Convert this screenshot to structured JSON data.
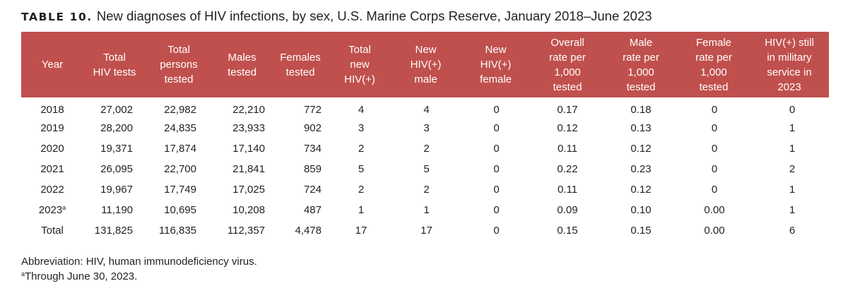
{
  "title": {
    "label": "TABLE 10.",
    "text": "New diagnoses of HIV infections, by sex, U.S. Marine Corps Reserve, January 2018–June 2023"
  },
  "columns": [
    [
      "Year"
    ],
    [
      "Total",
      "HIV tests"
    ],
    [
      "Total",
      "persons",
      "tested"
    ],
    [
      "Males",
      "tested"
    ],
    [
      "Females",
      "tested"
    ],
    [
      "Total",
      "new",
      "HIV(+)"
    ],
    [
      "New",
      "HIV(+)",
      "male"
    ],
    [
      "New",
      "HIV(+)",
      "female"
    ],
    [
      "Overall",
      "rate per",
      "1,000",
      "tested"
    ],
    [
      "Male",
      "rate per",
      "1,000",
      "tested"
    ],
    [
      "Female",
      "rate per",
      "1,000",
      "tested"
    ],
    [
      "HIV(+) still",
      "in military",
      "service in",
      "2023"
    ]
  ],
  "rows": [
    {
      "year": "2018",
      "year_note": "",
      "cells": [
        "27,002",
        "22,982",
        "22,210",
        "772",
        "4",
        "4",
        "0",
        "0.17",
        "0.18",
        "0",
        "0"
      ]
    },
    {
      "year": "2019",
      "year_note": "",
      "cells": [
        "28,200",
        "24,835",
        "23,933",
        "902",
        "3",
        "3",
        "0",
        "0.12",
        "0.13",
        "0",
        "1"
      ]
    },
    {
      "year": "2020",
      "year_note": "",
      "cells": [
        "19,371",
        "17,874",
        "17,140",
        "734",
        "2",
        "2",
        "0",
        "0.11",
        "0.12",
        "0",
        "1"
      ]
    },
    {
      "year": "2021",
      "year_note": "",
      "cells": [
        "26,095",
        "22,700",
        "21,841",
        "859",
        "5",
        "5",
        "0",
        "0.22",
        "0.23",
        "0",
        "2"
      ]
    },
    {
      "year": "2022",
      "year_note": "",
      "cells": [
        "19,967",
        "17,749",
        "17,025",
        "724",
        "2",
        "2",
        "0",
        "0.11",
        "0.12",
        "0",
        "1"
      ]
    },
    {
      "year": "2023",
      "year_note": "a",
      "cells": [
        "11,190",
        "10,695",
        "10,208",
        "487",
        "1",
        "1",
        "0",
        "0.09",
        "0.10",
        "0.00",
        "1"
      ]
    },
    {
      "year": "Total",
      "year_note": "",
      "cells": [
        "131,825",
        "116,835",
        "112,357",
        "4,478",
        "17",
        "17",
        "0",
        "0.15",
        "0.15",
        "0.00",
        "6"
      ]
    }
  ],
  "notes": {
    "abbreviation": "Abbreviation: HIV, human immunodeficiency virus.",
    "footnote_mark": "a",
    "footnote_text": "Through June 30, 2023."
  },
  "colors": {
    "header_bg": "#c0504d",
    "header_text": "#ffffff",
    "body_text": "#231f20"
  }
}
